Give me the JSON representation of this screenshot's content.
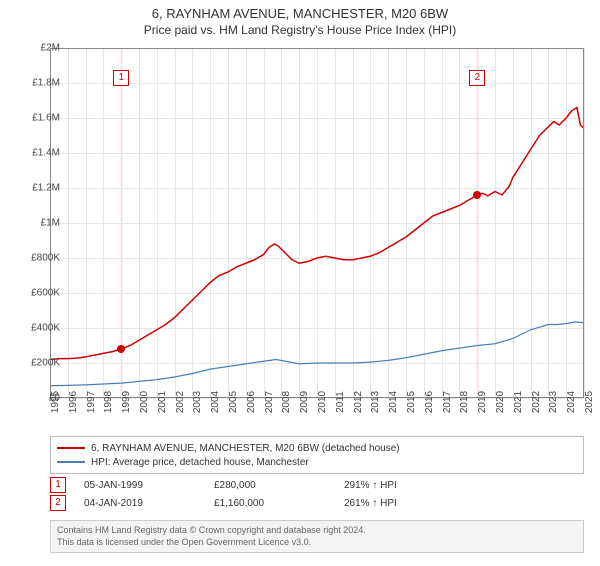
{
  "title": "6, RAYNHAM AVENUE, MANCHESTER, M20 6BW",
  "subtitle": "Price paid vs. HM Land Registry's House Price Index (HPI)",
  "chart": {
    "type": "line",
    "background_color": "#ffffff",
    "grid_color": "#e6e6e6",
    "border_color": "#888888",
    "highlight_band_color": "rgba(255,220,220,0.4)",
    "x": {
      "min": 1995.0,
      "max": 2025.0,
      "ticks": [
        1995,
        1996,
        1997,
        1998,
        1999,
        2000,
        2001,
        2002,
        2003,
        2004,
        2005,
        2006,
        2007,
        2008,
        2009,
        2010,
        2011,
        2012,
        2013,
        2014,
        2015,
        2016,
        2017,
        2018,
        2019,
        2020,
        2021,
        2022,
        2023,
        2024,
        2025
      ],
      "tick_fontsize": 10,
      "tick_rotation_deg": -90
    },
    "y": {
      "min": 0,
      "max": 2000000,
      "ticks": [
        0,
        200000,
        400000,
        600000,
        800000,
        1000000,
        1200000,
        1400000,
        1600000,
        1800000,
        2000000
      ],
      "tick_labels": [
        "£0",
        "£200K",
        "£400K",
        "£600K",
        "£800K",
        "£1M",
        "£1.2M",
        "£1.4M",
        "£1.6M",
        "£1.8M",
        "£2M"
      ],
      "tick_fontsize": 10
    },
    "series": [
      {
        "id": "property",
        "label": "6, RAYNHAM AVENUE, MANCHESTER, M20 6BW (detached house)",
        "color": "#d00000",
        "line_width": 1.5,
        "points": [
          [
            1995.0,
            220000
          ],
          [
            1995.5,
            225000
          ],
          [
            1996.0,
            225000
          ],
          [
            1996.5,
            228000
          ],
          [
            1997.0,
            235000
          ],
          [
            1997.5,
            245000
          ],
          [
            1998.0,
            255000
          ],
          [
            1998.5,
            265000
          ],
          [
            1999.01,
            280000
          ],
          [
            1999.5,
            300000
          ],
          [
            2000.0,
            330000
          ],
          [
            2000.5,
            360000
          ],
          [
            2001.0,
            390000
          ],
          [
            2001.5,
            420000
          ],
          [
            2002.0,
            460000
          ],
          [
            2002.5,
            510000
          ],
          [
            2003.0,
            560000
          ],
          [
            2003.5,
            610000
          ],
          [
            2004.0,
            660000
          ],
          [
            2004.5,
            700000
          ],
          [
            2005.0,
            720000
          ],
          [
            2005.5,
            750000
          ],
          [
            2006.0,
            770000
          ],
          [
            2006.5,
            790000
          ],
          [
            2007.0,
            820000
          ],
          [
            2007.3,
            860000
          ],
          [
            2007.6,
            880000
          ],
          [
            2007.8,
            870000
          ],
          [
            2008.0,
            850000
          ],
          [
            2008.3,
            820000
          ],
          [
            2008.6,
            790000
          ],
          [
            2009.0,
            770000
          ],
          [
            2009.5,
            780000
          ],
          [
            2010.0,
            800000
          ],
          [
            2010.5,
            810000
          ],
          [
            2011.0,
            800000
          ],
          [
            2011.5,
            790000
          ],
          [
            2012.0,
            790000
          ],
          [
            2012.5,
            800000
          ],
          [
            2013.0,
            810000
          ],
          [
            2013.5,
            830000
          ],
          [
            2014.0,
            860000
          ],
          [
            2014.5,
            890000
          ],
          [
            2015.0,
            920000
          ],
          [
            2015.5,
            960000
          ],
          [
            2016.0,
            1000000
          ],
          [
            2016.5,
            1040000
          ],
          [
            2017.0,
            1060000
          ],
          [
            2017.5,
            1080000
          ],
          [
            2018.0,
            1100000
          ],
          [
            2018.5,
            1130000
          ],
          [
            2019.01,
            1160000
          ],
          [
            2019.3,
            1170000
          ],
          [
            2019.6,
            1155000
          ],
          [
            2020.0,
            1180000
          ],
          [
            2020.4,
            1160000
          ],
          [
            2020.8,
            1210000
          ],
          [
            2021.0,
            1260000
          ],
          [
            2021.5,
            1340000
          ],
          [
            2022.0,
            1420000
          ],
          [
            2022.5,
            1500000
          ],
          [
            2023.0,
            1550000
          ],
          [
            2023.3,
            1580000
          ],
          [
            2023.6,
            1560000
          ],
          [
            2024.0,
            1600000
          ],
          [
            2024.3,
            1640000
          ],
          [
            2024.6,
            1660000
          ],
          [
            2024.8,
            1560000
          ],
          [
            2025.0,
            1540000
          ]
        ]
      },
      {
        "id": "hpi",
        "label": "HPI: Average price, detached house, Manchester",
        "color": "#4a7ebb",
        "line_width": 1.2,
        "points": [
          [
            1995.0,
            70000
          ],
          [
            1996.0,
            72000
          ],
          [
            1997.0,
            75000
          ],
          [
            1998.0,
            80000
          ],
          [
            1999.0,
            85000
          ],
          [
            2000.0,
            95000
          ],
          [
            2001.0,
            105000
          ],
          [
            2002.0,
            120000
          ],
          [
            2003.0,
            140000
          ],
          [
            2004.0,
            165000
          ],
          [
            2005.0,
            180000
          ],
          [
            2006.0,
            195000
          ],
          [
            2007.0,
            210000
          ],
          [
            2007.7,
            220000
          ],
          [
            2008.5,
            205000
          ],
          [
            2009.0,
            195000
          ],
          [
            2010.0,
            200000
          ],
          [
            2011.0,
            200000
          ],
          [
            2012.0,
            200000
          ],
          [
            2013.0,
            205000
          ],
          [
            2014.0,
            215000
          ],
          [
            2015.0,
            230000
          ],
          [
            2016.0,
            250000
          ],
          [
            2017.0,
            270000
          ],
          [
            2018.0,
            285000
          ],
          [
            2019.0,
            300000
          ],
          [
            2020.0,
            310000
          ],
          [
            2021.0,
            340000
          ],
          [
            2022.0,
            390000
          ],
          [
            2023.0,
            420000
          ],
          [
            2023.5,
            420000
          ],
          [
            2024.0,
            425000
          ],
          [
            2024.5,
            435000
          ],
          [
            2025.0,
            430000
          ]
        ]
      }
    ],
    "sale_markers": [
      {
        "n": "1",
        "x": 1999.01,
        "y": 280000
      },
      {
        "n": "2",
        "x": 2019.01,
        "y": 1160000
      }
    ],
    "marker_dot_color": "#d00000",
    "marker_box_border": "#d00000",
    "marker_box_text": "#d00000"
  },
  "legend": {
    "border_color": "#bbbbbb",
    "fontsize": 10,
    "items": [
      {
        "color": "#d00000",
        "label": "6, RAYNHAM AVENUE, MANCHESTER, M20 6BW (detached house)"
      },
      {
        "color": "#4a7ebb",
        "label": "HPI: Average price, detached house, Manchester"
      }
    ]
  },
  "sales_table": {
    "rows": [
      {
        "n": "1",
        "date": "05-JAN-1999",
        "price": "£280,000",
        "pct": "291% ↑ HPI"
      },
      {
        "n": "2",
        "date": "04-JAN-2019",
        "price": "£1,160,000",
        "pct": "261% ↑ HPI"
      }
    ]
  },
  "footer": {
    "line1": "Contains HM Land Registry data © Crown copyright and database right 2024.",
    "line2": "This data is licensed under the Open Government Licence v3.0.",
    "background": "#f4f4f4",
    "border_color": "#cccccc",
    "text_color": "#666666"
  }
}
